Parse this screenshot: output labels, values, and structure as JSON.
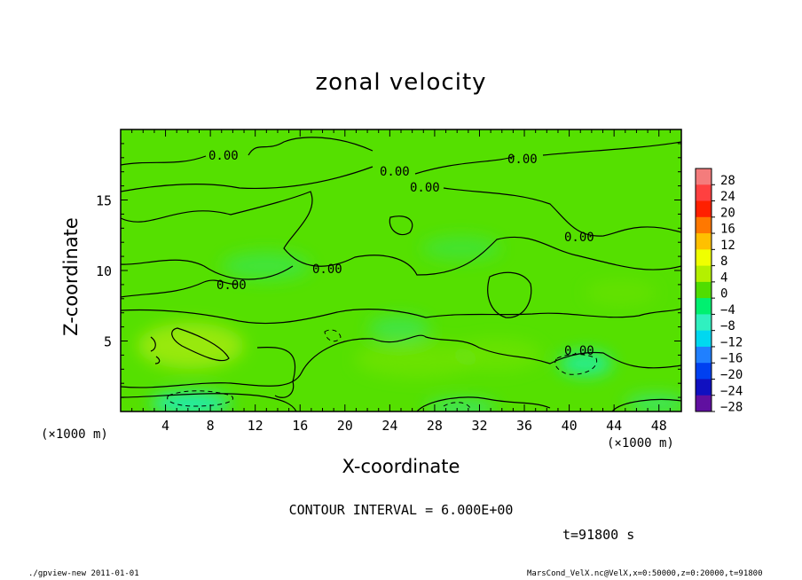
{
  "chart_data": {
    "type": "heatmap",
    "title": "zonal velocity",
    "xlabel": "X-coordinate",
    "ylabel": "Z-coordinate",
    "x_unit": "(×1000 m)",
    "xlim": [
      0,
      50
    ],
    "ylim": [
      0,
      20
    ],
    "x_ticks": [
      4,
      8,
      12,
      16,
      20,
      24,
      28,
      32,
      36,
      40,
      44,
      48
    ],
    "y_ticks": [
      5,
      10,
      15
    ],
    "colorbar": {
      "levels": [
        28,
        24,
        20,
        16,
        12,
        8,
        4,
        0,
        -4,
        -8,
        -12,
        -16,
        -20,
        -24,
        -28
      ],
      "labels": [
        "28",
        "24",
        "20",
        "16",
        "12",
        "8",
        "4",
        "0",
        "−4",
        "−8",
        "−12",
        "−16",
        "−20",
        "−24",
        "−28"
      ],
      "colors": [
        "#f47c7c",
        "#ff4040",
        "#ff2000",
        "#ff7800",
        "#ffc000",
        "#f0ff00",
        "#b4f000",
        "#50dd00",
        "#00f070",
        "#30f0c0",
        "#00d8f0",
        "#2080ff",
        "#0040f0",
        "#1010c0",
        "#6010a0"
      ]
    },
    "contour_labels": [
      {
        "text": "0.00",
        "x": 9.4,
        "z": 18.0
      },
      {
        "text": "0.00",
        "x": 24.0,
        "z": 16.9
      },
      {
        "text": "0.00",
        "x": 26.6,
        "z": 16.1
      },
      {
        "text": "0.00",
        "x": 35.8,
        "z": 17.7
      },
      {
        "text": "0.00",
        "x": 40.8,
        "z": 12.3
      },
      {
        "text": "0.00",
        "x": 18.9,
        "z": 10.0
      },
      {
        "text": "0.00",
        "x": 10.1,
        "z": 9.0
      },
      {
        "text": "0.00",
        "x": 40.8,
        "z": 4.3
      }
    ],
    "contour_interval": "CONTOUR INTERVAL = 6.000E+00",
    "time": "t=91800 s"
  },
  "footer": {
    "left": "./gpview-new   2011-01-01",
    "right": "MarsCond_VelX.nc@VelX,x=0:50000,z=0:20000,t=91800"
  }
}
